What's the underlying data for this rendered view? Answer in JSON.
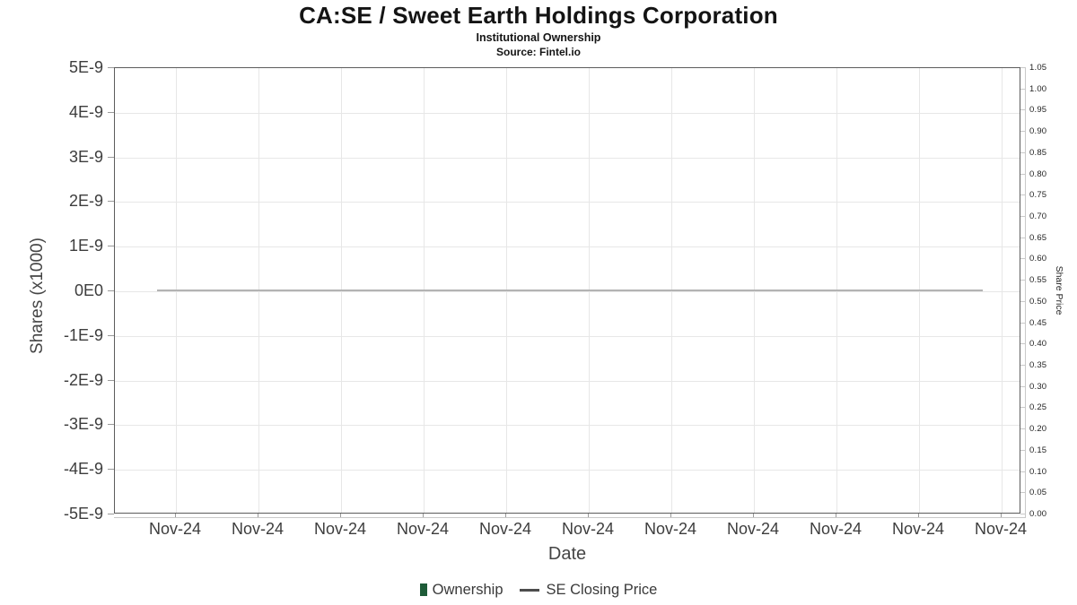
{
  "header": {
    "title": "CA:SE / Sweet Earth Holdings Corporation",
    "subtitle": "Institutional Ownership",
    "source": "Source: Fintel.io"
  },
  "chart_data": {
    "type": "line",
    "title": "CA:SE / Sweet Earth Holdings Corporation",
    "subtitle": "Institutional Ownership",
    "source": "Source: Fintel.io",
    "grid": true,
    "legend_position": "bottom",
    "x_axis": {
      "label": "Date",
      "ticks": [
        "Nov-24",
        "Nov-24",
        "Nov-24",
        "Nov-24",
        "Nov-24",
        "Nov-24",
        "Nov-24",
        "Nov-24",
        "Nov-24",
        "Nov-24",
        "Nov-24"
      ]
    },
    "left_axis": {
      "label": "Shares (x1000)",
      "ticks": [
        "5E-9",
        "4E-9",
        "3E-9",
        "2E-9",
        "1E-9",
        "0E0",
        "-1E-9",
        "-2E-9",
        "-3E-9",
        "-4E-9",
        "-5E-9"
      ],
      "range": [
        -5e-09,
        5e-09
      ]
    },
    "right_axis": {
      "label": "Share Price",
      "ticks": [
        "1.05",
        "1.00",
        "0.95",
        "0.90",
        "0.85",
        "0.80",
        "0.75",
        "0.70",
        "0.65",
        "0.60",
        "0.55",
        "0.50",
        "0.45",
        "0.40",
        "0.35",
        "0.30",
        "0.25",
        "0.20",
        "0.15",
        "0.10",
        "0.05",
        "0.00"
      ],
      "range": [
        0,
        1.05
      ]
    },
    "series": [
      {
        "name": "Ownership",
        "type": "bar",
        "axis": "left",
        "color": "#1e5b38",
        "values": [
          0,
          0,
          0,
          0,
          0,
          0,
          0,
          0,
          0,
          0,
          0
        ]
      },
      {
        "name": "SE Closing Price",
        "type": "line",
        "axis": "right",
        "color": "#b3b3b3",
        "values": [
          0.525,
          0.525,
          0.525,
          0.525,
          0.525,
          0.525,
          0.525,
          0.525,
          0.525,
          0.525,
          0.525
        ]
      }
    ]
  },
  "legend": {
    "items": [
      {
        "label": "Ownership",
        "marker": "bar",
        "color": "#1e5b38"
      },
      {
        "label": "SE Closing Price",
        "marker": "line",
        "color": "#4d4d4d"
      }
    ]
  }
}
